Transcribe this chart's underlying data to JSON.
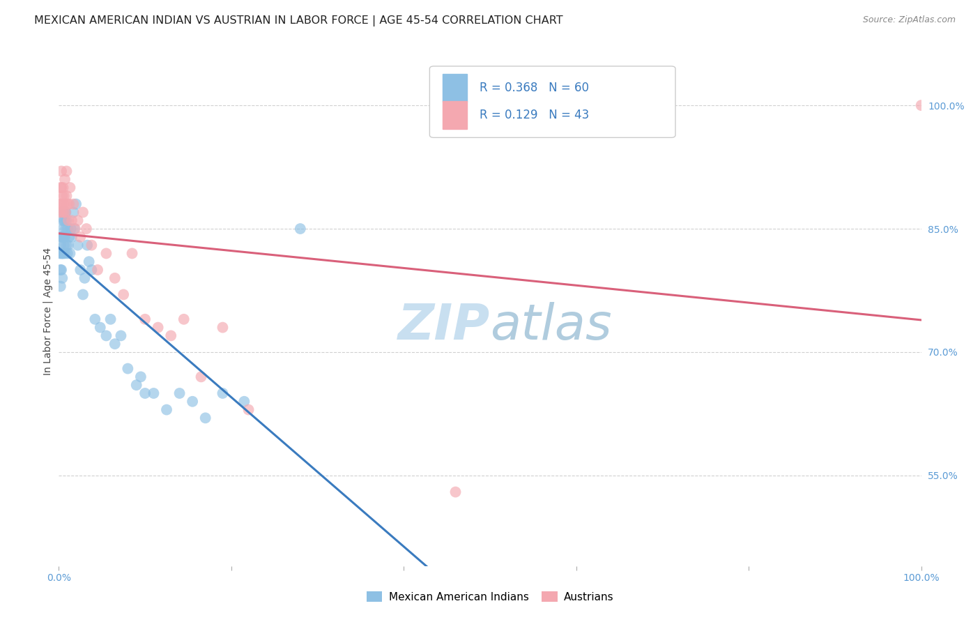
{
  "title": "MEXICAN AMERICAN INDIAN VS AUSTRIAN IN LABOR FORCE | AGE 45-54 CORRELATION CHART",
  "source": "Source: ZipAtlas.com",
  "ylabel": "In Labor Force | Age 45-54",
  "xlim": [
    0.0,
    1.0
  ],
  "ylim": [
    0.44,
    1.06
  ],
  "ytick_positions": [
    0.55,
    0.7,
    0.85,
    1.0
  ],
  "ytick_labels": [
    "55.0%",
    "70.0%",
    "85.0%",
    "100.0%"
  ],
  "xtick_positions": [
    0.0,
    0.2,
    0.4,
    0.6,
    0.8,
    1.0
  ],
  "xticklabels_show": [
    "0.0%",
    "100.0%"
  ],
  "watermark_zip": "ZIP",
  "watermark_atlas": "atlas",
  "blue_R": 0.368,
  "blue_N": 60,
  "pink_R": 0.129,
  "pink_N": 43,
  "blue_color": "#8ec0e4",
  "pink_color": "#f4a8b0",
  "blue_line_color": "#3a7bbf",
  "pink_line_color": "#d9607a",
  "legend_blue_label": "Mexican American Indians",
  "legend_pink_label": "Austrians",
  "blue_x": [
    0.001,
    0.002,
    0.002,
    0.002,
    0.003,
    0.003,
    0.003,
    0.004,
    0.004,
    0.004,
    0.004,
    0.005,
    0.005,
    0.005,
    0.005,
    0.006,
    0.006,
    0.006,
    0.007,
    0.007,
    0.007,
    0.008,
    0.008,
    0.009,
    0.009,
    0.01,
    0.01,
    0.011,
    0.012,
    0.013,
    0.014,
    0.015,
    0.017,
    0.018,
    0.02,
    0.022,
    0.025,
    0.028,
    0.03,
    0.033,
    0.035,
    0.038,
    0.042,
    0.048,
    0.055,
    0.06,
    0.065,
    0.072,
    0.08,
    0.09,
    0.095,
    0.1,
    0.11,
    0.125,
    0.14,
    0.155,
    0.17,
    0.19,
    0.215,
    0.28
  ],
  "blue_y": [
    0.82,
    0.78,
    0.8,
    0.83,
    0.8,
    0.82,
    0.84,
    0.79,
    0.82,
    0.84,
    0.86,
    0.82,
    0.85,
    0.84,
    0.87,
    0.83,
    0.84,
    0.86,
    0.82,
    0.84,
    0.86,
    0.85,
    0.87,
    0.83,
    0.86,
    0.82,
    0.85,
    0.83,
    0.84,
    0.82,
    0.85,
    0.84,
    0.87,
    0.85,
    0.88,
    0.83,
    0.8,
    0.77,
    0.79,
    0.83,
    0.81,
    0.8,
    0.74,
    0.73,
    0.72,
    0.74,
    0.71,
    0.72,
    0.68,
    0.66,
    0.67,
    0.65,
    0.65,
    0.63,
    0.65,
    0.64,
    0.62,
    0.65,
    0.64,
    0.85
  ],
  "pink_x": [
    0.001,
    0.002,
    0.002,
    0.003,
    0.003,
    0.003,
    0.004,
    0.004,
    0.005,
    0.005,
    0.006,
    0.006,
    0.007,
    0.007,
    0.008,
    0.009,
    0.009,
    0.01,
    0.011,
    0.012,
    0.013,
    0.015,
    0.017,
    0.019,
    0.022,
    0.025,
    0.028,
    0.032,
    0.038,
    0.045,
    0.055,
    0.065,
    0.075,
    0.085,
    0.1,
    0.115,
    0.13,
    0.145,
    0.165,
    0.19,
    0.22,
    0.46,
    1.0
  ],
  "pink_y": [
    0.87,
    0.88,
    0.9,
    0.88,
    0.9,
    0.92,
    0.87,
    0.89,
    0.88,
    0.9,
    0.87,
    0.89,
    0.88,
    0.91,
    0.87,
    0.89,
    0.92,
    0.88,
    0.86,
    0.88,
    0.9,
    0.86,
    0.88,
    0.85,
    0.86,
    0.84,
    0.87,
    0.85,
    0.83,
    0.8,
    0.82,
    0.79,
    0.77,
    0.82,
    0.74,
    0.73,
    0.72,
    0.74,
    0.67,
    0.73,
    0.63,
    0.53,
    1.0
  ],
  "grid_color": "#d0d0d0",
  "background_color": "#ffffff",
  "title_fontsize": 11.5,
  "axis_label_fontsize": 10,
  "tick_fontsize": 10,
  "source_fontsize": 9,
  "tick_color": "#5b9bd5"
}
